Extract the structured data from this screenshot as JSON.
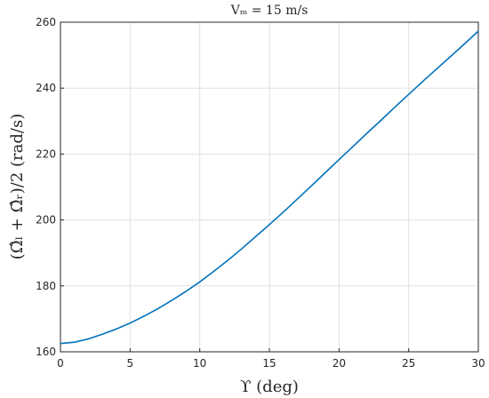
{
  "chart_data": {
    "type": "line",
    "title": "Vₘ = 15 m/s",
    "xlabel": "ϒ (deg)",
    "ylabel": "(Ω̂ₗ + Ω̂ᵣ)/2 (rad/s)",
    "xlim": [
      0,
      30
    ],
    "ylim": [
      160,
      260
    ],
    "xticks": [
      "0",
      "5",
      "10",
      "15",
      "20",
      "25",
      "30"
    ],
    "yticks": [
      "160",
      "180",
      "200",
      "220",
      "240",
      "260"
    ],
    "grid": true,
    "line_color": "#0072bd",
    "series": [
      {
        "x": [
          0,
          1,
          2,
          3,
          4,
          5,
          6,
          7,
          8,
          9,
          10,
          11,
          12,
          13,
          14,
          15,
          16,
          17,
          18,
          19,
          20,
          21,
          22,
          23,
          24,
          25,
          26,
          27,
          28,
          29,
          30
        ],
        "values": [
          162.5,
          162.9,
          163.9,
          165.3,
          166.9,
          168.7,
          170.8,
          173.1,
          175.6,
          178.3,
          181.2,
          184.4,
          187.7,
          191.2,
          194.9,
          198.6,
          202.4,
          206.3,
          210.3,
          214.3,
          218.3,
          222.3,
          226.3,
          230.2,
          234.2,
          238.1,
          242.0,
          245.8,
          249.6,
          253.4,
          257.3
        ]
      }
    ]
  }
}
